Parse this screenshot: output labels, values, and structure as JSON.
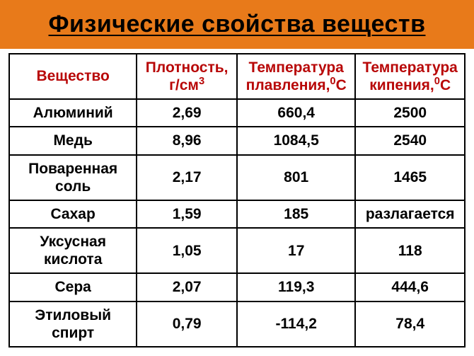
{
  "title": "Физические свойства веществ",
  "title_bg_color": "#e87a1a",
  "header_color": "#b80707",
  "text_color": "#000000",
  "border_color": "#000000",
  "bg_color": "#ffffff",
  "columns": {
    "substance": "Вещество",
    "density_line1": "Плотность,",
    "density_line2_prefix": "г/см",
    "density_line2_sup": "3",
    "melting_line1": "Температура",
    "melting_line2_prefix": "плавления,",
    "melting_line2_sup": "0",
    "melting_line2_suffix": "С",
    "boiling_line1": "Температура",
    "boiling_line2_prefix": "кипения,",
    "boiling_line2_sup": "0",
    "boiling_line2_suffix": "С"
  },
  "rows": [
    {
      "substance": "Алюминий",
      "density": "2,69",
      "melting": "660,4",
      "boiling": "2500"
    },
    {
      "substance": "Медь",
      "density": "8,96",
      "melting": "1084,5",
      "boiling": "2540"
    },
    {
      "substance_l1": "Поваренная",
      "substance_l2": "соль",
      "density": "2,17",
      "melting": "801",
      "boiling": "1465"
    },
    {
      "substance": "Сахар",
      "density": "1,59",
      "melting": "185",
      "boiling": "разлагается"
    },
    {
      "substance_l1": "Уксусная",
      "substance_l2": "кислота",
      "density": "1,05",
      "melting": "17",
      "boiling": "118"
    },
    {
      "substance": "Сера",
      "density": "2,07",
      "melting": "119,3",
      "boiling": "444,6"
    },
    {
      "substance": "Этиловый спирт",
      "density": "0,79",
      "melting": "-114,2",
      "boiling": "78,4"
    }
  ]
}
